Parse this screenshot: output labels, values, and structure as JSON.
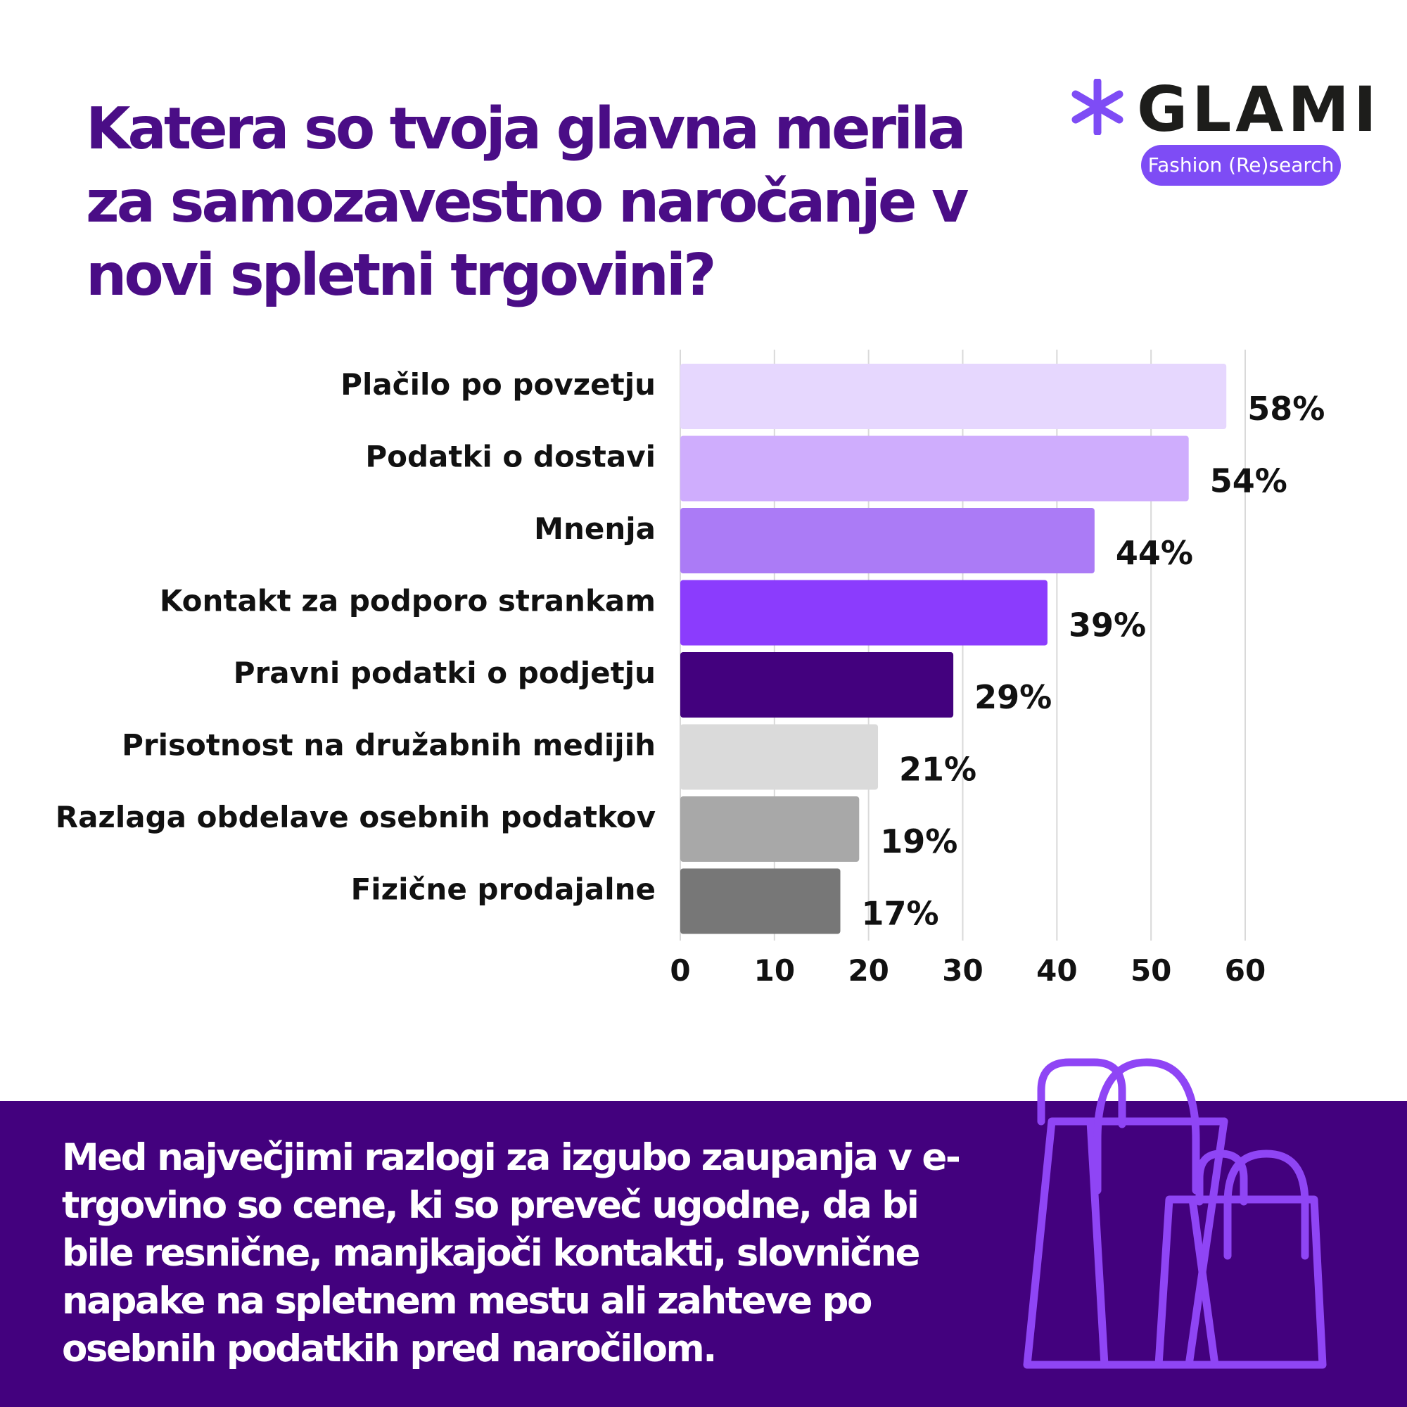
{
  "title": "Katera so tvoja glavna merila za samozavestno naročanje v novi spletni trgovini?",
  "logo": {
    "name": "GLAMI",
    "badge": "Fashion (Re)search",
    "accent": "#7e4cf5"
  },
  "chart_data": {
    "type": "bar",
    "orientation": "horizontal",
    "title": "",
    "xlabel": "",
    "ylabel": "",
    "categories": [
      "Plačilo po povzetju",
      "Podatki o dostavi",
      "Mnenja",
      "Kontakt za podporo strankam",
      "Pravni podatki o podjetju",
      "Prisotnost na družabnih medijih",
      "Razlaga obdelave osebnih podatkov",
      "Fizične prodajalne"
    ],
    "values": [
      58,
      54,
      44,
      39,
      29,
      21,
      19,
      17
    ],
    "value_labels": [
      "58%",
      "54%",
      "44%",
      "39%",
      "29%",
      "21%",
      "19%",
      "17%"
    ],
    "colors": [
      "#e6d7fe",
      "#cfadfd",
      "#ab7bf6",
      "#8b3cfd",
      "#43017e",
      "#dadada",
      "#a8a8a8",
      "#777777"
    ],
    "xlim": [
      0,
      60
    ],
    "xticks": [
      0,
      10,
      20,
      30,
      40,
      50,
      60
    ],
    "grid": true
  },
  "footer": {
    "text": "Med največjimi razlogi za izgubo zaupanja v e-trgovino so cene, ki so preveč ugodne, da bi bile resnične, manjkajoči kontakti, slovnične napake na spletnem mestu ali zahteve po osebnih podatkih pred naročilom.",
    "background": "#43017e",
    "icon": "shopping-bags-icon"
  }
}
